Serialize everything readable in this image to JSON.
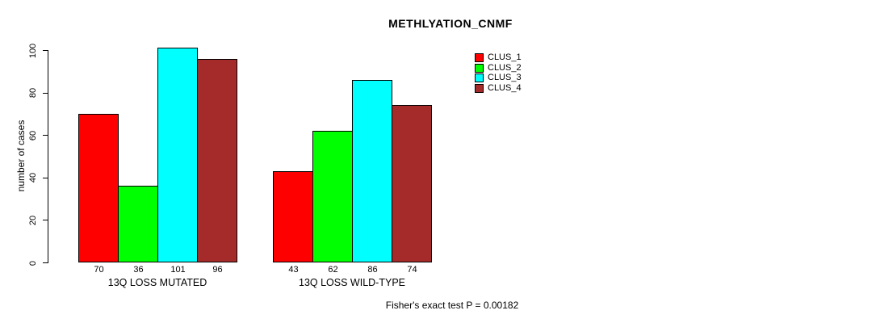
{
  "title": "METHLYATION_CNMF",
  "caption": "Fisher's exact test P = 0.00182",
  "chart_data": {
    "type": "bar",
    "title": "METHLYATION_CNMF",
    "xlabel": "",
    "ylabel": "number of cases",
    "ylim": [
      0,
      100
    ],
    "yticks": [
      0,
      20,
      40,
      60,
      80,
      100
    ],
    "categories": [
      "13Q LOSS MUTATED",
      "13Q LOSS WILD-TYPE"
    ],
    "series": [
      {
        "name": "CLUS_1",
        "color": "#ff0000",
        "values": [
          70,
          43
        ]
      },
      {
        "name": "CLUS_2",
        "color": "#00ff00",
        "values": [
          36,
          62
        ]
      },
      {
        "name": "CLUS_3",
        "color": "#00ffff",
        "values": [
          101,
          86
        ]
      },
      {
        "name": "CLUS_4",
        "color": "#a52a2a",
        "values": [
          96,
          74
        ]
      }
    ],
    "bar_labels": [
      [
        70,
        36,
        101,
        96
      ],
      [
        43,
        62,
        86,
        74
      ]
    ],
    "annotation": "Fisher's exact test P = 0.00182",
    "legend_position": "right",
    "grid": false
  }
}
